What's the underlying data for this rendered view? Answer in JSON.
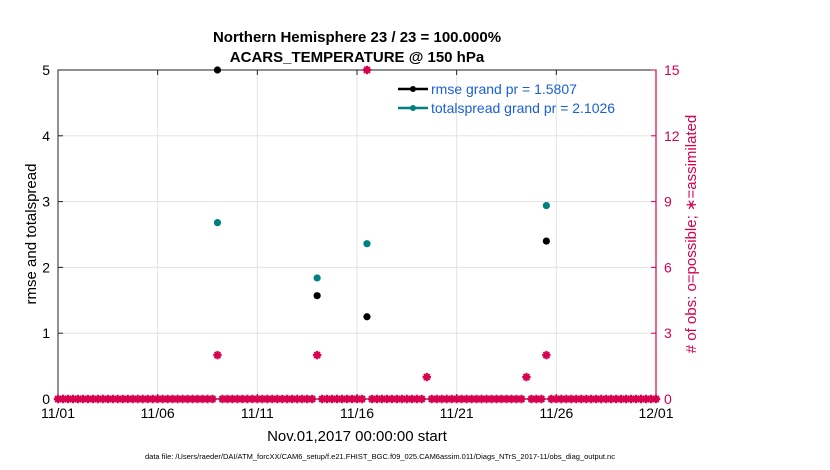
{
  "chart_data": {
    "type": "scatter",
    "title_line1": "Northern Hemisphere 23 / 23 = 100.000%",
    "title_line2": "ACARS_TEMPERATURE @ 150 hPa",
    "xlabel": "Nov.01,2017 00:00:00 start",
    "ylabel": "rmse and totalspread",
    "ylabel_right": "# of obs: o=possible; ∗=assimilated",
    "x_tick_labels": [
      "11/01",
      "11/06",
      "11/11",
      "11/16",
      "11/21",
      "11/26",
      "12/01"
    ],
    "x_tick_days": [
      0,
      5,
      10,
      15,
      20,
      25,
      30
    ],
    "xlim": [
      0,
      30
    ],
    "ylim": [
      0,
      5
    ],
    "ylim_right": [
      0,
      15
    ],
    "y_ticks": [
      0,
      1,
      2,
      3,
      4,
      5
    ],
    "y_ticks_right": [
      0,
      3,
      6,
      9,
      12,
      15
    ],
    "grid": true,
    "legend_position": "top-right",
    "colors": {
      "rmse": "#000000",
      "totalspread": "#008080",
      "obs": "#d6004f",
      "legend_text": "#1a5fd6"
    },
    "series": [
      {
        "name": "rmse",
        "legend": "rmse grand pr = 1.5807",
        "x": [
          8,
          13,
          15.5,
          24.5
        ],
        "y": [
          5.0,
          1.57,
          1.25,
          2.4
        ]
      },
      {
        "name": "totalspread",
        "legend": "totalspread grand pr = 2.1026",
        "x": [
          8,
          13,
          15.5,
          24.5
        ],
        "y": [
          2.68,
          1.84,
          2.36,
          2.94
        ]
      },
      {
        "name": "obs_assimilated",
        "axis": "right",
        "nonzero": [
          {
            "x": 8,
            "y": 2
          },
          {
            "x": 13,
            "y": 2
          },
          {
            "x": 15.5,
            "y": 15
          },
          {
            "x": 18.5,
            "y": 1
          },
          {
            "x": 23.5,
            "y": 1
          },
          {
            "x": 24.5,
            "y": 2
          }
        ],
        "zero_step_days": 0.25
      }
    ],
    "footnote": "data file: /Users/raeder/DAI/ATM_forcXX/CAM6_setup/f.e21.FHIST_BGC.f09_025.CAM6assim.011/Diags_NTrS_2017-11/obs_diag_output.nc"
  }
}
